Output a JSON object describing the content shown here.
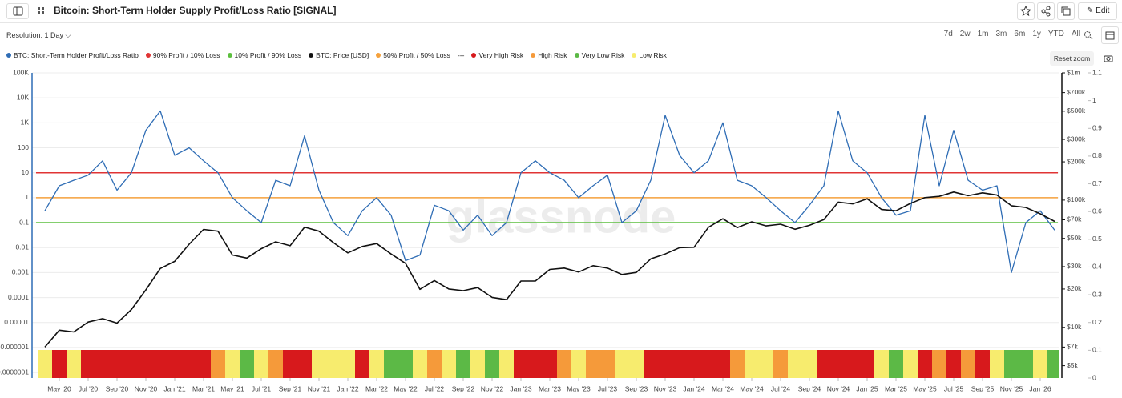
{
  "toolbar": {
    "title": "Bitcoin: Short-Term Holder Supply Profit/Loss Ratio [SIGNAL]",
    "edit": "Edit",
    "resolution": "Resolution: 1 Day",
    "ranges": [
      "7d",
      "2w",
      "1m",
      "3m",
      "6m",
      "1y",
      "YTD",
      "All"
    ],
    "reset_zoom": "Reset zoom"
  },
  "chart_data": {
    "type": "line",
    "watermark": "glassnode",
    "categories": [
      null,
      "May '20",
      null,
      "Jul '20",
      null,
      "Sep '20",
      null,
      "Nov '20",
      null,
      "Jan '21",
      null,
      "Mar '21",
      null,
      "May '21",
      null,
      "Jul '21",
      null,
      "Sep '21",
      null,
      "Nov '21",
      null,
      "Jan '22",
      null,
      "Mar '22",
      null,
      "May '22",
      null,
      "Jul '22",
      null,
      "Sep '22",
      null,
      "Nov '22",
      null,
      "Jan '23",
      null,
      "Mar '23",
      null,
      "May '23",
      null,
      "Jul '23",
      null,
      "Sep '23",
      null,
      "Nov '23",
      null,
      "Jan '24",
      null,
      "Mar '24",
      null,
      "May '24",
      null,
      "Jul '24",
      null,
      "Sep '24",
      null,
      "Nov '24",
      null,
      "Jan '25",
      null,
      "Mar '25",
      null,
      "May '25",
      null,
      "Jul '25",
      null,
      "Sep '25",
      null,
      "Nov '25",
      null,
      "Jan '26",
      null
    ],
    "series": [
      {
        "name": "BTC: Short-Term Holder Profit/Loss Ratio",
        "color": "#2f6db5",
        "values": [
          0.3,
          3,
          5,
          8,
          30,
          2,
          10,
          500,
          3000,
          50,
          100,
          30,
          10,
          1,
          0.3,
          0.1,
          5,
          3,
          300,
          2,
          0.1,
          0.03,
          0.3,
          1,
          0.2,
          0.003,
          0.005,
          0.5,
          0.3,
          0.05,
          0.2,
          0.03,
          0.1,
          10,
          30,
          10,
          5,
          1,
          3,
          8,
          0.1,
          0.3,
          5,
          2000,
          50,
          10,
          30,
          1000,
          5,
          3,
          1,
          0.3,
          0.1,
          0.5,
          3,
          3000,
          30,
          10,
          1,
          0.2,
          0.3,
          2000,
          3,
          500,
          5,
          2,
          3,
          0.001,
          0.1,
          0.3,
          0.05
        ]
      },
      {
        "name": "90% Profit / 10% Loss",
        "color": "#e03434",
        "value": 10
      },
      {
        "name": "10% Profit / 90% Loss",
        "color": "#5cbf3e",
        "value": 0.1
      },
      {
        "name": "BTC: Price [USD]",
        "color": "#111111",
        "axis": "y2",
        "values": [
          7000,
          9500,
          9200,
          11000,
          11700,
          10800,
          13800,
          19700,
          29000,
          33000,
          45000,
          58800,
          57000,
          37000,
          35000,
          41500,
          47000,
          43800,
          61300,
          57000,
          46300,
          38500,
          43200,
          45500,
          37700,
          31800,
          19900,
          23300,
          20000,
          19400,
          20500,
          17200,
          16500,
          23100,
          23100,
          28500,
          29200,
          27200,
          30500,
          29200,
          26000,
          27000,
          34500,
          37700,
          42300,
          42600,
          61200,
          71300,
          60700,
          67500,
          62700,
          64600,
          59000,
          63300,
          70200,
          96400,
          93400,
          102400,
          84400,
          82500,
          94200,
          104600,
          107100,
          115700,
          108200,
          114000,
          109500,
          90400,
          87500,
          78000,
          68000
        ]
      },
      {
        "name": "50% Profit / 50% Loss",
        "color": "#f5a13c",
        "value": 1
      }
    ],
    "legend_separator": "---",
    "risk_levels": [
      {
        "name": "Very High Risk",
        "color": "#d7191c"
      },
      {
        "name": "High Risk",
        "color": "#f59a3a"
      },
      {
        "name": "Very Low Risk",
        "color": "#5cb946"
      },
      {
        "name": "Low Risk",
        "color": "#f7ec6e"
      }
    ],
    "risk_band": [
      3,
      0,
      3,
      0,
      0,
      0,
      0,
      0,
      0,
      0,
      0,
      0,
      1,
      3,
      2,
      3,
      1,
      0,
      0,
      3,
      3,
      3,
      0,
      3,
      2,
      2,
      3,
      1,
      3,
      2,
      3,
      2,
      3,
      0,
      0,
      0,
      1,
      3,
      1,
      1,
      3,
      3,
      0,
      0,
      0,
      0,
      0,
      0,
      1,
      3,
      3,
      1,
      3,
      3,
      0,
      0,
      0,
      0,
      3,
      2,
      3,
      0,
      1,
      0,
      1,
      0,
      3,
      2,
      2,
      3,
      2
    ],
    "yscale": "log",
    "ylim": [
      6e-08,
      100000
    ],
    "yticks": [
      {
        "value": 1e-07,
        "label": "0.0000001"
      },
      1e-06,
      1e-05,
      0.0001,
      0.001,
      0.01,
      0.1,
      1,
      10,
      100,
      {
        "value": 1000,
        "label": "1K"
      },
      {
        "value": 10000,
        "label": "10K"
      },
      {
        "value": 100000,
        "label": "100K"
      }
    ],
    "y2scale": "log",
    "y2lim": [
      4000,
      1000000
    ],
    "y2ticks": [
      {
        "value": 5000,
        "label": "$5k"
      },
      {
        "value": 7000,
        "label": "$7k"
      },
      {
        "value": 10000,
        "label": "$10k"
      },
      {
        "value": 20000,
        "label": "$20k"
      },
      {
        "value": 30000,
        "label": "$30k"
      },
      {
        "value": 50000,
        "label": "$50k"
      },
      {
        "value": 70000,
        "label": "$70k"
      },
      {
        "value": 100000,
        "label": "$100k"
      },
      {
        "value": 200000,
        "label": "$200k"
      },
      {
        "value": 300000,
        "label": "$300k"
      },
      {
        "value": 500000,
        "label": "$500k"
      },
      {
        "value": 700000,
        "label": "$700k"
      },
      {
        "value": 1000000,
        "label": "$1m"
      }
    ],
    "y3lim": [
      0,
      1.1
    ],
    "y3ticks": [
      0,
      0.1,
      0.2,
      0.3,
      0.4,
      0.5,
      0.6,
      0.7,
      0.8,
      0.9,
      1,
      1.1
    ],
    "grid": true
  }
}
